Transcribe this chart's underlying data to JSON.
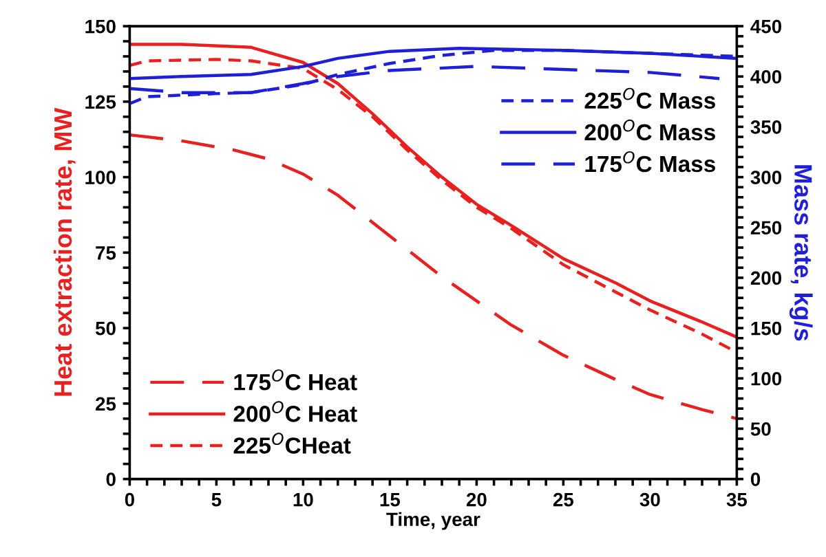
{
  "chart_data": {
    "type": "line",
    "xlabel": "Time, year",
    "ylabel": "Heat extraction rate, MW",
    "y2label": "Mass rate, kg/s",
    "xlim": [
      0,
      35
    ],
    "ylim": [
      0,
      150
    ],
    "y2lim": [
      0,
      450
    ],
    "xticks": [
      0,
      {
        "value": 1,
        "label": null
      },
      {
        "value": 2,
        "label": null
      },
      {
        "value": 3,
        "label": null
      },
      {
        "value": 4,
        "label": null
      },
      5,
      {
        "value": 6,
        "label": null
      },
      {
        "value": 7,
        "label": null
      },
      {
        "value": 8,
        "label": null
      },
      {
        "value": 9,
        "label": null
      },
      10,
      {
        "value": 11,
        "label": null
      },
      {
        "value": 12,
        "label": null
      },
      {
        "value": 13,
        "label": null
      },
      {
        "value": 14,
        "label": null
      },
      15,
      {
        "value": 16,
        "label": null
      },
      {
        "value": 17,
        "label": null
      },
      {
        "value": 18,
        "label": null
      },
      {
        "value": 19,
        "label": null
      },
      20,
      {
        "value": 21,
        "label": null
      },
      {
        "value": 22,
        "label": null
      },
      {
        "value": 23,
        "label": null
      },
      {
        "value": 24,
        "label": null
      },
      25,
      {
        "value": 26,
        "label": null
      },
      {
        "value": 27,
        "label": null
      },
      {
        "value": 28,
        "label": null
      },
      {
        "value": 29,
        "label": null
      },
      30,
      {
        "value": 31,
        "label": null
      },
      {
        "value": 32,
        "label": null
      },
      {
        "value": 33,
        "label": null
      },
      {
        "value": 34,
        "label": null
      },
      35
    ],
    "yticks": [
      0,
      {
        "value": 5,
        "label": null
      },
      {
        "value": 10,
        "label": null
      },
      {
        "value": 15,
        "label": null
      },
      {
        "value": 20,
        "label": null
      },
      25,
      {
        "value": 30,
        "label": null
      },
      {
        "value": 35,
        "label": null
      },
      {
        "value": 40,
        "label": null
      },
      {
        "value": 45,
        "label": null
      },
      50,
      {
        "value": 55,
        "label": null
      },
      {
        "value": 60,
        "label": null
      },
      {
        "value": 65,
        "label": null
      },
      {
        "value": 70,
        "label": null
      },
      75,
      {
        "value": 80,
        "label": null
      },
      {
        "value": 85,
        "label": null
      },
      {
        "value": 90,
        "label": null
      },
      {
        "value": 95,
        "label": null
      },
      100,
      {
        "value": 105,
        "label": null
      },
      {
        "value": 110,
        "label": null
      },
      {
        "value": 115,
        "label": null
      },
      {
        "value": 120,
        "label": null
      },
      125,
      {
        "value": 130,
        "label": null
      },
      {
        "value": 135,
        "label": null
      },
      {
        "value": 140,
        "label": null
      },
      {
        "value": 145,
        "label": null
      },
      150
    ],
    "y2ticks": [
      0,
      {
        "value": 10,
        "label": null
      },
      {
        "value": 20,
        "label": null
      },
      {
        "value": 30,
        "label": null
      },
      {
        "value": 40,
        "label": null
      },
      50,
      {
        "value": 60,
        "label": null
      },
      {
        "value": 70,
        "label": null
      },
      {
        "value": 80,
        "label": null
      },
      {
        "value": 90,
        "label": null
      },
      100,
      {
        "value": 110,
        "label": null
      },
      {
        "value": 120,
        "label": null
      },
      {
        "value": 130,
        "label": null
      },
      {
        "value": 140,
        "label": null
      },
      150,
      {
        "value": 160,
        "label": null
      },
      {
        "value": 170,
        "label": null
      },
      {
        "value": 180,
        "label": null
      },
      {
        "value": 190,
        "label": null
      },
      200,
      {
        "value": 210,
        "label": null
      },
      {
        "value": 220,
        "label": null
      },
      {
        "value": 230,
        "label": null
      },
      {
        "value": 240,
        "label": null
      },
      250,
      {
        "value": 260,
        "label": null
      },
      {
        "value": 270,
        "label": null
      },
      {
        "value": 280,
        "label": null
      },
      {
        "value": 290,
        "label": null
      },
      300,
      {
        "value": 310,
        "label": null
      },
      {
        "value": 320,
        "label": null
      },
      {
        "value": 330,
        "label": null
      },
      {
        "value": 340,
        "label": null
      },
      350,
      {
        "value": 360,
        "label": null
      },
      {
        "value": 370,
        "label": null
      },
      {
        "value": 380,
        "label": null
      },
      {
        "value": 390,
        "label": null
      },
      400,
      {
        "value": 410,
        "label": null
      },
      {
        "value": 420,
        "label": null
      },
      {
        "value": 430,
        "label": null
      },
      {
        "value": 440,
        "label": null
      },
      450
    ],
    "grid": false,
    "legend": "bottom left",
    "marker": "none",
    "series": [
      {
        "name": "175$^{O}$C Heat",
        "color": "#e8201f",
        "line_style": "longdash",
        "x": [
          0,
          3,
          6,
          8,
          10,
          12,
          14,
          16,
          18,
          20,
          22,
          25,
          28,
          30,
          33,
          35
        ],
        "values": [
          114,
          112,
          109,
          106,
          101,
          94,
          85,
          76,
          67,
          59,
          51,
          41,
          33,
          28,
          23,
          20
        ]
      },
      {
        "name": "200$^{O}$C Heat",
        "color": "#e8201f",
        "line_style": "solid",
        "x": [
          0,
          3,
          7,
          10,
          12,
          14,
          16,
          18,
          20,
          22,
          25,
          28,
          30,
          33,
          35
        ],
        "values": [
          144,
          144,
          143,
          138,
          131,
          121,
          110,
          100,
          91,
          84,
          73,
          65,
          59,
          52,
          47
        ]
      },
      {
        "name": "225$^{O}$CHeat",
        "color": "#e8201f",
        "line_style": "dashed",
        "x": [
          0,
          1,
          5,
          7,
          10,
          12,
          14,
          16,
          18,
          20,
          22,
          25,
          28,
          30,
          33,
          35
        ],
        "values": [
          137,
          138.5,
          139,
          138.5,
          136,
          129,
          120,
          109,
          99,
          90,
          83,
          71,
          62,
          56,
          48,
          42
        ]
      },
      {
        "name": "225$^{O}$C Mass",
        "color": "#1f1fd8",
        "line_style": "dashed",
        "axis": "y2",
        "x": [
          0,
          1,
          5,
          7,
          10,
          12,
          15,
          18,
          21,
          25,
          30,
          35
        ],
        "values": [
          373,
          380,
          383,
          384,
          392,
          402,
          413,
          421,
          426,
          426,
          423,
          420
        ]
      },
      {
        "name": "200$^{O}$C Mass",
        "color": "#1f1fd8",
        "line_style": "solid",
        "axis": "y2",
        "x": [
          0,
          3,
          7,
          10,
          12,
          15,
          19,
          22,
          25,
          30,
          35
        ],
        "values": [
          398,
          400,
          402,
          410,
          418,
          425,
          428,
          427,
          426,
          423,
          418
        ]
      },
      {
        "name": "175$^{O}$C Mass",
        "color": "#1f1fd8",
        "line_style": "longdash",
        "axis": "y2",
        "x": [
          0,
          3,
          7,
          10,
          12,
          15,
          20,
          25,
          30,
          34
        ],
        "values": [
          388,
          384,
          384,
          393,
          400,
          406,
          410,
          407,
          404,
          398
        ]
      }
    ]
  }
}
